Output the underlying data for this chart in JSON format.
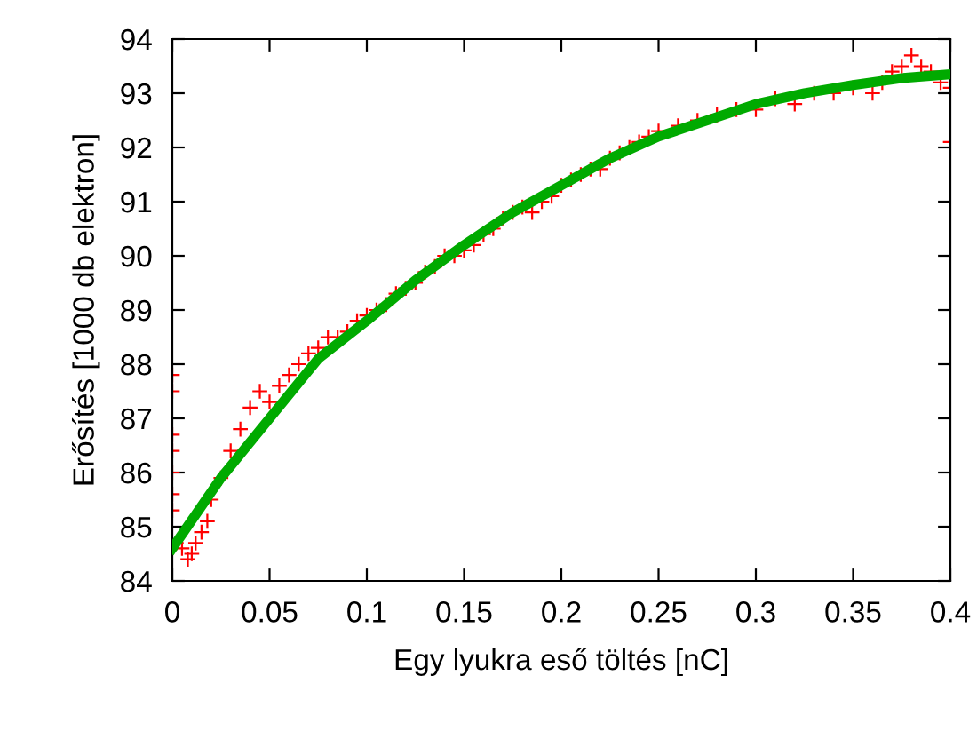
{
  "chart_data": {
    "type": "scatter",
    "xlabel": "Egy lyukra eső töltés [nC]",
    "ylabel": "Erősítés [1000 db elektron]",
    "xlim": [
      0,
      0.4
    ],
    "ylim": [
      84,
      94
    ],
    "xticks": [
      0,
      0.05,
      0.1,
      0.15,
      0.2,
      0.25,
      0.3,
      0.35,
      0.4
    ],
    "yticks": [
      84,
      85,
      86,
      87,
      88,
      89,
      90,
      91,
      92,
      93,
      94
    ],
    "grid": false,
    "series": [
      {
        "marker": "cross",
        "color": "#ff0000",
        "x": [
          0,
          0,
          0,
          0,
          0,
          0,
          0,
          0.002,
          0.005,
          0.008,
          0.01,
          0.012,
          0.015,
          0.018,
          0.02,
          0.025,
          0.03,
          0.035,
          0.04,
          0.045,
          0.05,
          0.055,
          0.06,
          0.065,
          0.07,
          0.075,
          0.08,
          0.085,
          0.09,
          0.095,
          0.1,
          0.105,
          0.11,
          0.115,
          0.12,
          0.125,
          0.13,
          0.135,
          0.14,
          0.145,
          0.15,
          0.155,
          0.16,
          0.165,
          0.17,
          0.175,
          0.18,
          0.185,
          0.19,
          0.195,
          0.2,
          0.205,
          0.21,
          0.215,
          0.22,
          0.225,
          0.23,
          0.235,
          0.24,
          0.245,
          0.25,
          0.26,
          0.27,
          0.28,
          0.29,
          0.3,
          0.31,
          0.32,
          0.33,
          0.34,
          0.35,
          0.36,
          0.365,
          0.37,
          0.375,
          0.38,
          0.385,
          0.39,
          0.395,
          0.4,
          0.4
        ],
        "values": [
          87.8,
          87.5,
          86.7,
          86.4,
          86.0,
          85.6,
          85.3,
          84.7,
          84.6,
          84.4,
          84.5,
          84.7,
          84.9,
          85.1,
          85.5,
          85.9,
          86.4,
          86.8,
          87.2,
          87.5,
          87.3,
          87.6,
          87.8,
          88.0,
          88.2,
          88.3,
          88.5,
          88.5,
          88.6,
          88.8,
          88.9,
          89.0,
          89.1,
          89.3,
          89.4,
          89.5,
          89.7,
          89.8,
          90.0,
          90.0,
          90.1,
          90.2,
          90.4,
          90.5,
          90.7,
          90.8,
          90.9,
          90.8,
          91.0,
          91.1,
          91.3,
          91.4,
          91.5,
          91.6,
          91.6,
          91.8,
          91.9,
          92.0,
          92.1,
          92.2,
          92.3,
          92.4,
          92.5,
          92.6,
          92.7,
          92.7,
          92.9,
          92.8,
          93.0,
          93.0,
          93.1,
          93.0,
          93.2,
          93.4,
          93.5,
          93.7,
          93.5,
          93.4,
          93.2,
          93.1,
          92.1
        ]
      },
      {
        "type": "line",
        "color": "#00aa00",
        "marker": "none",
        "line_style": "solid",
        "x": [
          0,
          0.025,
          0.05,
          0.075,
          0.1,
          0.125,
          0.15,
          0.175,
          0.2,
          0.225,
          0.25,
          0.275,
          0.3,
          0.325,
          0.35,
          0.375,
          0.4
        ],
        "values": [
          84.6,
          85.9,
          87.0,
          88.1,
          88.8,
          89.55,
          90.2,
          90.8,
          91.3,
          91.8,
          92.2,
          92.5,
          92.8,
          93.0,
          93.15,
          93.28,
          93.35
        ]
      }
    ]
  }
}
